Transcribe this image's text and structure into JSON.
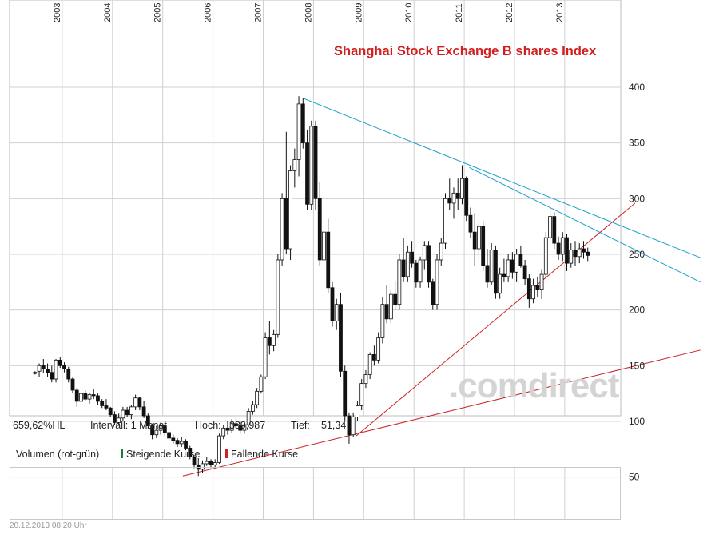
{
  "chart_data": {
    "type": "candlestick",
    "title": "Shanghai Stock Exchange B shares Index",
    "interval": "monthly",
    "ylim": [
      30,
      410
    ],
    "yticks": [
      50,
      100,
      150,
      200,
      250,
      300,
      350,
      400
    ],
    "year_labels": [
      "2003",
      "2004",
      "2005",
      "2006",
      "2007",
      "2008",
      "2009",
      "2010",
      "2011",
      "2012",
      "2013"
    ],
    "x_start_month": "2002-06",
    "x_end_month": "2013-12",
    "candles": [
      [
        143,
        145,
        142,
        144
      ],
      [
        145,
        152,
        140,
        150
      ],
      [
        150,
        156,
        143,
        147
      ],
      [
        147,
        152,
        140,
        144
      ],
      [
        144,
        150,
        135,
        138
      ],
      [
        138,
        156,
        135,
        155
      ],
      [
        155,
        158,
        148,
        150
      ],
      [
        150,
        153,
        144,
        147
      ],
      [
        147,
        149,
        135,
        138
      ],
      [
        138,
        140,
        125,
        128
      ],
      [
        128,
        130,
        113,
        118
      ],
      [
        118,
        128,
        115,
        125
      ],
      [
        125,
        128,
        118,
        120
      ],
      [
        120,
        126,
        116,
        124
      ],
      [
        124,
        129,
        120,
        123
      ],
      [
        123,
        125,
        115,
        118
      ],
      [
        118,
        120,
        112,
        114
      ],
      [
        114,
        120,
        110,
        112
      ],
      [
        112,
        113,
        104,
        106
      ],
      [
        106,
        109,
        97,
        99
      ],
      [
        99,
        107,
        97,
        103
      ],
      [
        103,
        113,
        100,
        110
      ],
      [
        110,
        113,
        104,
        106
      ],
      [
        106,
        115,
        102,
        113
      ],
      [
        113,
        124,
        110,
        121
      ],
      [
        121,
        122,
        110,
        113
      ],
      [
        113,
        118,
        103,
        105
      ],
      [
        105,
        107,
        93,
        96
      ],
      [
        96,
        98,
        84,
        88
      ],
      [
        88,
        96,
        85,
        92
      ],
      [
        92,
        99,
        88,
        96
      ],
      [
        96,
        98,
        87,
        90
      ],
      [
        90,
        92,
        82,
        85
      ],
      [
        85,
        88,
        80,
        83
      ],
      [
        83,
        85,
        77,
        80
      ],
      [
        80,
        86,
        77,
        82
      ],
      [
        82,
        84,
        74,
        76
      ],
      [
        76,
        78,
        66,
        68
      ],
      [
        68,
        70,
        58,
        61
      ],
      [
        61,
        67,
        51,
        57
      ],
      [
        57,
        65,
        54,
        62
      ],
      [
        62,
        68,
        60,
        64
      ],
      [
        64,
        66,
        58,
        61
      ],
      [
        61,
        66,
        59,
        63
      ],
      [
        63,
        89,
        62,
        87
      ],
      [
        87,
        97,
        84,
        94
      ],
      [
        94,
        100,
        88,
        92
      ],
      [
        92,
        102,
        90,
        98
      ],
      [
        98,
        104,
        93,
        96
      ],
      [
        96,
        100,
        89,
        92
      ],
      [
        92,
        100,
        89,
        97
      ],
      [
        97,
        112,
        95,
        109
      ],
      [
        109,
        118,
        106,
        115
      ],
      [
        115,
        130,
        112,
        127
      ],
      [
        127,
        142,
        125,
        140
      ],
      [
        140,
        180,
        138,
        175
      ],
      [
        175,
        190,
        160,
        168
      ],
      [
        168,
        182,
        163,
        178
      ],
      [
        178,
        250,
        175,
        245
      ],
      [
        245,
        305,
        240,
        300
      ],
      [
        300,
        360,
        250,
        255
      ],
      [
        255,
        330,
        245,
        325
      ],
      [
        325,
        345,
        310,
        335
      ],
      [
        335,
        392,
        320,
        385
      ],
      [
        385,
        390,
        345,
        350
      ],
      [
        350,
        362,
        290,
        295
      ],
      [
        295,
        370,
        290,
        365
      ],
      [
        365,
        370,
        290,
        300
      ],
      [
        300,
        315,
        240,
        245
      ],
      [
        245,
        275,
        230,
        270
      ],
      [
        270,
        282,
        215,
        220
      ],
      [
        220,
        225,
        185,
        190
      ],
      [
        190,
        210,
        182,
        205
      ],
      [
        205,
        215,
        140,
        145
      ],
      [
        145,
        150,
        100,
        105
      ],
      [
        105,
        108,
        80,
        88
      ],
      [
        88,
        108,
        86,
        104
      ],
      [
        104,
        118,
        100,
        114
      ],
      [
        114,
        138,
        110,
        134
      ],
      [
        134,
        146,
        130,
        142
      ],
      [
        142,
        162,
        138,
        160
      ],
      [
        160,
        168,
        150,
        155
      ],
      [
        155,
        180,
        152,
        175
      ],
      [
        175,
        212,
        170,
        205
      ],
      [
        205,
        222,
        188,
        192
      ],
      [
        192,
        218,
        188,
        214
      ],
      [
        214,
        226,
        200,
        205
      ],
      [
        205,
        250,
        200,
        245
      ],
      [
        245,
        265,
        225,
        230
      ],
      [
        230,
        258,
        225,
        252
      ],
      [
        252,
        262,
        238,
        242
      ],
      [
        242,
        245,
        220,
        225
      ],
      [
        225,
        248,
        220,
        245
      ],
      [
        245,
        262,
        236,
        258
      ],
      [
        258,
        262,
        220,
        225
      ],
      [
        225,
        228,
        200,
        205
      ],
      [
        205,
        250,
        200,
        245
      ],
      [
        245,
        265,
        240,
        260
      ],
      [
        260,
        305,
        255,
        300
      ],
      [
        300,
        318,
        290,
        296
      ],
      [
        296,
        310,
        282,
        305
      ],
      [
        305,
        318,
        290,
        300
      ],
      [
        300,
        330,
        295,
        318
      ],
      [
        318,
        320,
        280,
        285
      ],
      [
        285,
        292,
        265,
        270
      ],
      [
        270,
        287,
        240,
        255
      ],
      [
        255,
        280,
        245,
        275
      ],
      [
        275,
        280,
        235,
        240
      ],
      [
        240,
        255,
        220,
        225
      ],
      [
        225,
        260,
        222,
        254
      ],
      [
        254,
        258,
        210,
        215
      ],
      [
        215,
        238,
        210,
        232
      ],
      [
        232,
        246,
        225,
        230
      ],
      [
        230,
        250,
        225,
        245
      ],
      [
        245,
        252,
        228,
        234
      ],
      [
        234,
        255,
        225,
        250
      ],
      [
        250,
        258,
        238,
        240
      ],
      [
        240,
        245,
        222,
        228
      ],
      [
        228,
        232,
        202,
        210
      ],
      [
        210,
        228,
        206,
        222
      ],
      [
        222,
        230,
        212,
        218
      ],
      [
        218,
        236,
        210,
        232
      ],
      [
        232,
        270,
        228,
        265
      ],
      [
        265,
        292,
        258,
        284
      ],
      [
        284,
        288,
        255,
        260
      ],
      [
        260,
        266,
        245,
        250
      ],
      [
        250,
        270,
        244,
        265
      ],
      [
        265,
        268,
        235,
        242
      ],
      [
        242,
        260,
        238,
        254
      ],
      [
        254,
        262,
        240,
        248
      ],
      [
        248,
        260,
        242,
        255
      ],
      [
        255,
        262,
        246,
        252
      ],
      [
        252,
        256,
        244,
        249
      ]
    ],
    "trendlines": [
      {
        "color": "#cc2222",
        "from": [
          2005.4,
          51
        ],
        "to": [
          2015.7,
          164
        ]
      },
      {
        "color": "#cc2222",
        "from": [
          2008.85,
          87
        ],
        "to": [
          2014.4,
          296
        ]
      },
      {
        "color": "#1aa0cc",
        "from": [
          2007.8,
          390
        ],
        "to": [
          2015.7,
          247
        ]
      },
      {
        "color": "#1aa0cc",
        "from": [
          2011.1,
          328
        ],
        "to": [
          2015.7,
          225
        ]
      }
    ],
    "stats": {
      "change": "659,62%HL",
      "interval": "Intervall: 1 Monat",
      "high_label": "Hoch:",
      "high_value": "389,987",
      "low_label": "Tief:",
      "low_value": "51,34"
    },
    "volume_legend": {
      "label": "Volumen (rot-grün)",
      "rising": "Steigende Kurse",
      "falling": "Fallende Kurse",
      "rising_color": "#1f7a3a",
      "falling_color": "#cc2222"
    },
    "watermark": ".comdirect",
    "timestamp": "20.12.2013 08:20 Uhr"
  }
}
